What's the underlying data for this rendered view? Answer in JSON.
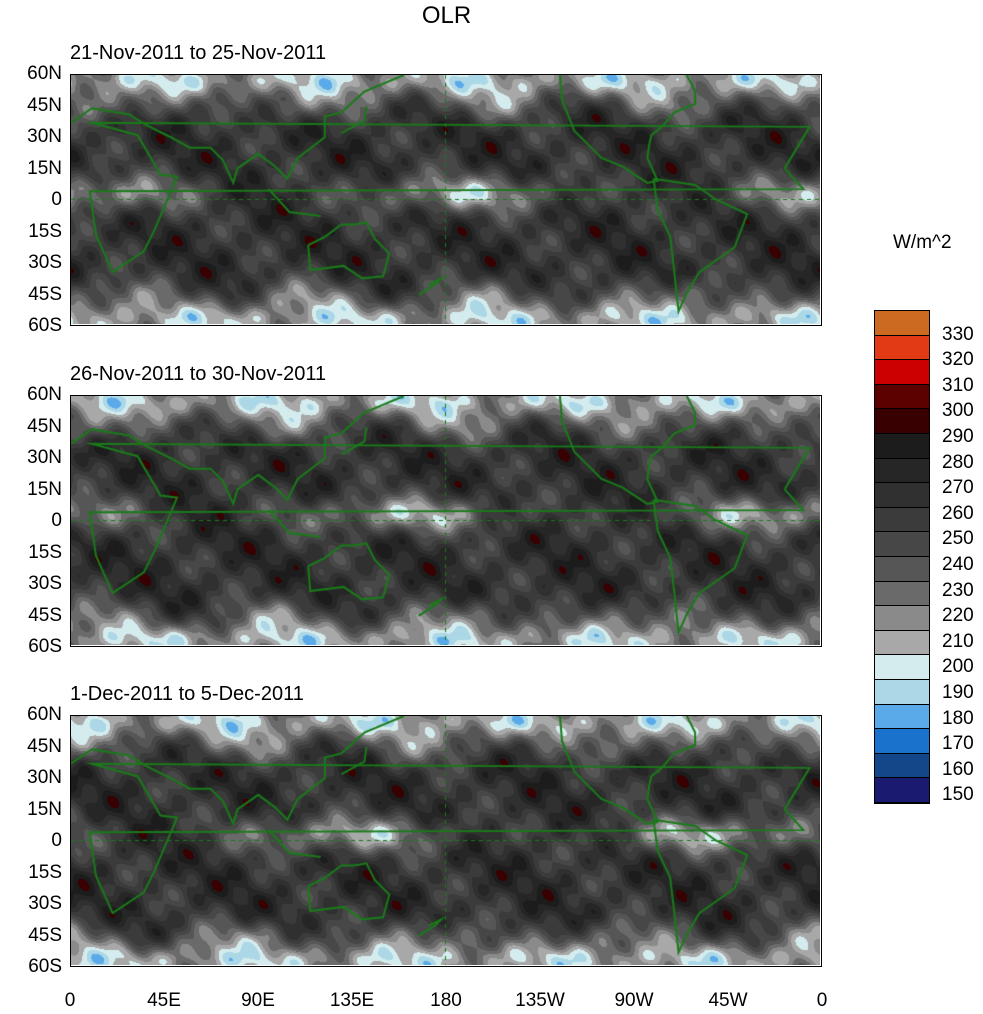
{
  "chart_data": {
    "type": "heatmap",
    "title": "OLR",
    "units_label": "W/m^2",
    "panels": [
      {
        "subtitle": "21-Nov-2011 to 25-Nov-2011"
      },
      {
        "subtitle": "26-Nov-2011 to 30-Nov-2011"
      },
      {
        "subtitle": "1-Dec-2011 to 5-Dec-2011"
      }
    ],
    "xlim": [
      0,
      360
    ],
    "ylim": [
      -60,
      60
    ],
    "y_ticks": [
      "60N",
      "45N",
      "30N",
      "15N",
      "0",
      "15S",
      "30S",
      "45S",
      "60S"
    ],
    "x_ticks": [
      "0",
      "45E",
      "90E",
      "135E",
      "180",
      "135W",
      "90W",
      "45W",
      "0"
    ],
    "colorbar": {
      "levels": [
        330,
        320,
        310,
        300,
        290,
        280,
        270,
        260,
        250,
        240,
        230,
        220,
        210,
        200,
        190,
        180,
        170,
        160,
        150
      ],
      "colors": [
        "#cc6a22",
        "#e23a14",
        "#cc0000",
        "#5c0000",
        "#380000",
        "#1c1c1c",
        "#262626",
        "#303030",
        "#3b3b3b",
        "#474747",
        "#565656",
        "#6a6a6a",
        "#8a8a8a",
        "#a8a8a8",
        "#d4ecee",
        "#acd7e6",
        "#5aaaea",
        "#1a72cc",
        "#12488a",
        "#1a1a70"
      ]
    }
  }
}
